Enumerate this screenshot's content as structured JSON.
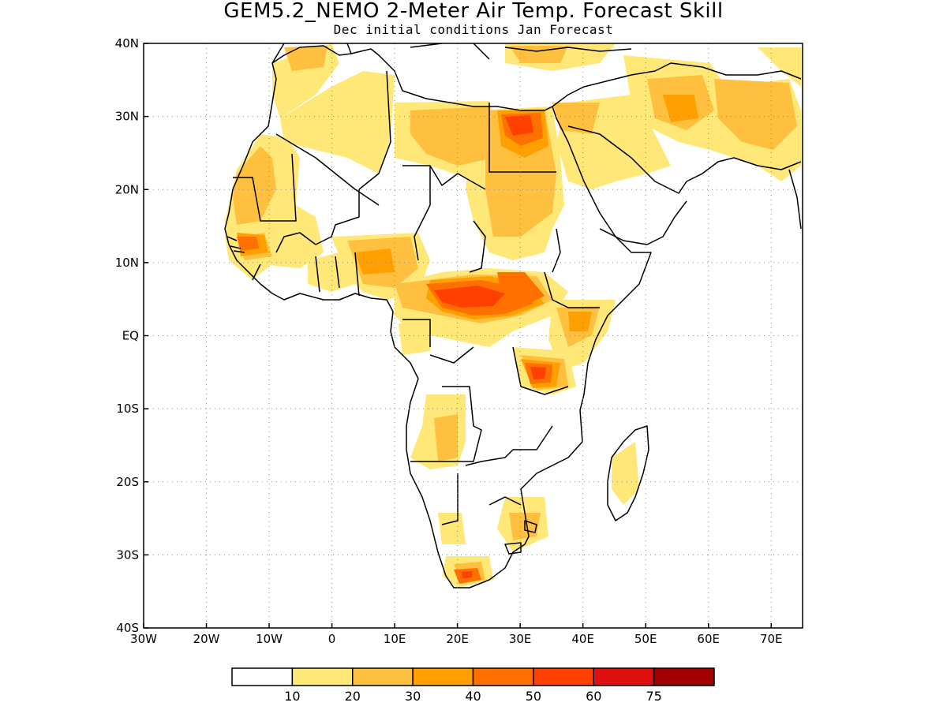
{
  "title": "GEM5.2_NEMO 2-Meter Air Temp. Forecast Skill",
  "subtitle": "Dec initial conditions  Jan Forecast",
  "axes": {
    "lat_labels": [
      "40N",
      "30N",
      "20N",
      "10N",
      "EQ",
      "10S",
      "20S",
      "30S",
      "40S"
    ],
    "lat_values": [
      40,
      30,
      20,
      10,
      0,
      -10,
      -20,
      -30,
      -40
    ],
    "lon_labels": [
      "30W",
      "20W",
      "10W",
      "0",
      "10E",
      "20E",
      "30E",
      "40E",
      "50E",
      "60E",
      "70E"
    ],
    "lon_values": [
      -30,
      -20,
      -10,
      0,
      10,
      20,
      30,
      40,
      50,
      60,
      70
    ],
    "lon_range": [
      -30,
      75
    ],
    "lat_range": [
      -40,
      40
    ],
    "grid": "dotted"
  },
  "colorbar": {
    "labels": [
      "10",
      "20",
      "30",
      "40",
      "50",
      "60",
      "75"
    ],
    "bin_colors": [
      "#ffffff",
      "#ffe878",
      "#ffc040",
      "#ffa000",
      "#ff7000",
      "#ff4000",
      "#e01010",
      "#a00000"
    ]
  }
}
